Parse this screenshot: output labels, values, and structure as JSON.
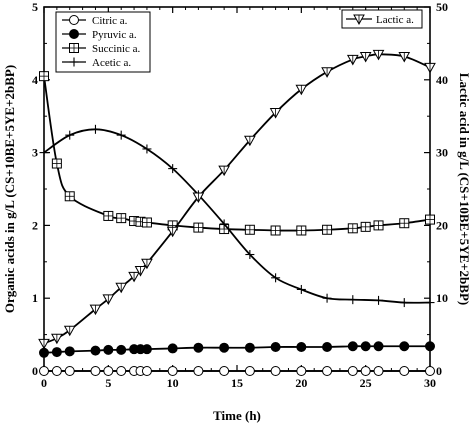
{
  "chart_data": {
    "type": "line",
    "xlabel": "Time (h)",
    "ylabel_left": "Organic acids in g/L (CS+10BE+5YE+2bBP)",
    "ylabel_right": "Lactic acid in g/L (CS+10BE+5YE+2bBP)",
    "xlim": [
      0,
      30
    ],
    "ylim_left": [
      0,
      5
    ],
    "ylim_right": [
      0,
      50
    ],
    "x_ticks": [
      0,
      5,
      10,
      15,
      20,
      25,
      30
    ],
    "y_ticks_left": [
      0,
      1,
      2,
      3,
      4,
      5
    ],
    "y_ticks_right": [
      0,
      10,
      20,
      30,
      40,
      50
    ],
    "grid": false,
    "legend_left": {
      "placement": "top-left",
      "entries": [
        "Citric a.",
        "Pyruvic a.",
        "Succinic a.",
        "Acetic a."
      ]
    },
    "legend_right": {
      "placement": "top-right",
      "entries": [
        "Lactic a."
      ]
    },
    "series": [
      {
        "name": "Citric a.",
        "axis": "left",
        "marker": "circle-open",
        "x": [
          0,
          1,
          2,
          4,
          5,
          6,
          7,
          7.5,
          8,
          10,
          12,
          14,
          16,
          18,
          20,
          22,
          24,
          25,
          26,
          28,
          30
        ],
        "y": [
          0,
          0,
          0,
          0,
          0,
          0,
          0,
          0,
          0,
          0,
          0,
          0,
          0,
          0,
          0,
          0,
          0,
          0,
          0,
          0,
          0
        ]
      },
      {
        "name": "Pyruvic a.",
        "axis": "left",
        "marker": "circle-filled",
        "x": [
          0,
          1,
          2,
          4,
          5,
          6,
          7,
          7.5,
          8,
          10,
          12,
          14,
          16,
          18,
          20,
          22,
          24,
          25,
          26,
          28,
          30
        ],
        "y": [
          0.25,
          0.26,
          0.27,
          0.28,
          0.29,
          0.29,
          0.3,
          0.3,
          0.3,
          0.31,
          0.32,
          0.32,
          0.32,
          0.33,
          0.33,
          0.33,
          0.34,
          0.34,
          0.34,
          0.34,
          0.34
        ]
      },
      {
        "name": "Succinic a.",
        "axis": "left",
        "marker": "square-crossed",
        "x": [
          0,
          1,
          2,
          5,
          6,
          7,
          7.5,
          8,
          10,
          12,
          14,
          16,
          18,
          20,
          22,
          24,
          25,
          26,
          28,
          30
        ],
        "y": [
          4.05,
          2.85,
          2.4,
          2.13,
          2.1,
          2.06,
          2.05,
          2.04,
          2.0,
          1.97,
          1.95,
          1.94,
          1.93,
          1.93,
          1.94,
          1.96,
          1.98,
          2.0,
          2.03,
          2.08
        ]
      },
      {
        "name": "Acetic a.",
        "axis": "left",
        "marker": "plus",
        "x": [
          0,
          2,
          4,
          6,
          8,
          10,
          12,
          14,
          16,
          18,
          20,
          22,
          24,
          26,
          28,
          30
        ],
        "y": [
          3.0,
          3.24,
          3.32,
          3.24,
          3.05,
          2.78,
          2.42,
          2.02,
          1.6,
          1.28,
          1.12,
          1.0,
          0.98,
          0.97,
          0.94,
          0.94
        ]
      },
      {
        "name": "Lactic a.",
        "axis": "right",
        "marker": "triangle-down-crossed",
        "x": [
          0,
          1,
          2,
          4,
          5,
          6,
          7,
          7.5,
          8,
          10,
          12,
          14,
          16,
          18,
          20,
          22,
          24,
          25,
          26,
          28,
          30
        ],
        "y": [
          3.8,
          4.5,
          5.6,
          8.5,
          9.9,
          11.5,
          13.0,
          13.8,
          14.8,
          19.2,
          23.9,
          27.6,
          31.7,
          35.5,
          38.7,
          41.1,
          42.8,
          43.2,
          43.5,
          43.2,
          41.7
        ]
      }
    ]
  }
}
